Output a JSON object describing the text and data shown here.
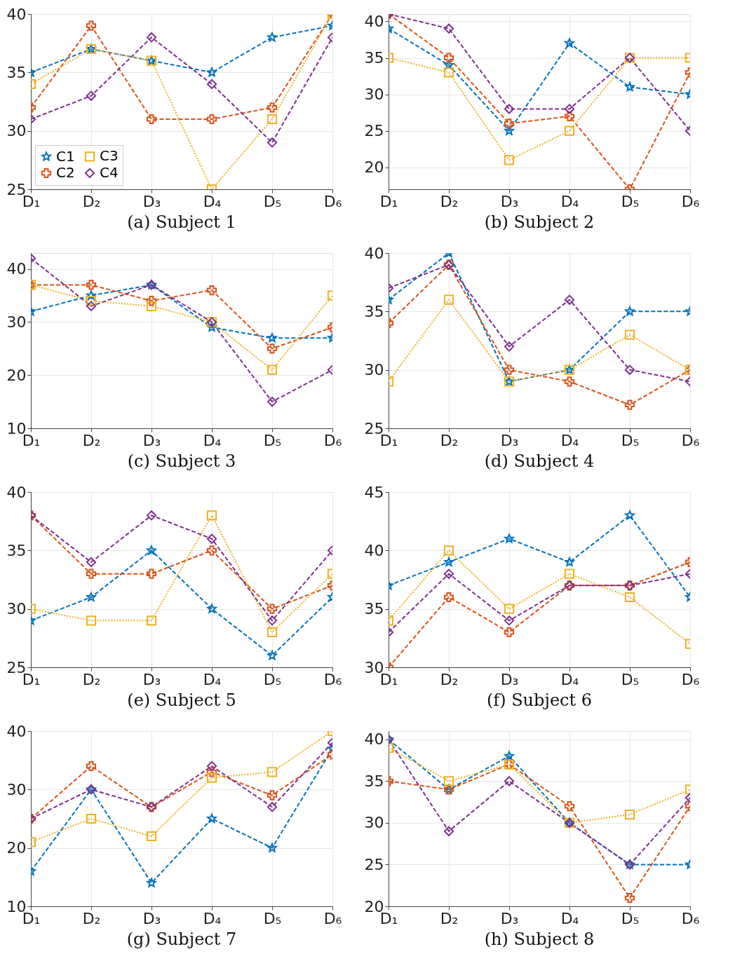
{
  "chart_data": [
    {
      "type": "line",
      "title": "(a) Subject 1",
      "categories": [
        "D₁",
        "D₂",
        "D₃",
        "D₄",
        "D₅",
        "D₆"
      ],
      "ylim": [
        25,
        40
      ],
      "yticks": [
        25,
        30,
        35,
        40
      ],
      "grid": true,
      "legend": "bottom left",
      "series": [
        {
          "name": "C1",
          "color": "#0072bd",
          "marker": "star",
          "line_style": "dashed",
          "values": [
            35,
            37,
            36,
            35,
            38,
            39
          ]
        },
        {
          "name": "C2",
          "color": "#d95319",
          "marker": "cross",
          "line_style": "dashed",
          "values": [
            32,
            39,
            31,
            31,
            32,
            40
          ]
        },
        {
          "name": "C3",
          "color": "#edb120",
          "marker": "square",
          "line_style": "dotted",
          "values": [
            34,
            37,
            36,
            25,
            31,
            40
          ]
        },
        {
          "name": "C4",
          "color": "#7e2f8e",
          "marker": "diamond",
          "line_style": "dashed",
          "values": [
            31,
            33,
            38,
            34,
            29,
            38
          ]
        }
      ]
    },
    {
      "type": "line",
      "title": "(b) Subject 2",
      "categories": [
        "D₁",
        "D₂",
        "D₃",
        "D₄",
        "D₅",
        "D₆"
      ],
      "ylim": [
        17,
        41
      ],
      "yticks": [
        20,
        25,
        30,
        35,
        40
      ],
      "grid": true,
      "series": [
        {
          "color": "#0072bd",
          "marker": "star",
          "line_style": "dashed",
          "values": [
            39,
            34,
            25,
            37,
            31,
            30
          ]
        },
        {
          "color": "#d95319",
          "marker": "cross",
          "line_style": "dashed",
          "values": [
            41,
            35,
            26,
            27,
            17,
            33
          ]
        },
        {
          "color": "#edb120",
          "marker": "square",
          "line_style": "dotted",
          "values": [
            35,
            33,
            21,
            25,
            35,
            35
          ]
        },
        {
          "color": "#7e2f8e",
          "marker": "diamond",
          "line_style": "dashed",
          "values": [
            41,
            39,
            28,
            28,
            35,
            25
          ]
        }
      ]
    },
    {
      "type": "line",
      "title": "(c) Subject 3",
      "categories": [
        "D₁",
        "D₂",
        "D₃",
        "D₄",
        "D₅",
        "D₆"
      ],
      "ylim": [
        10,
        43
      ],
      "yticks": [
        10,
        20,
        30,
        40
      ],
      "grid": true,
      "series": [
        {
          "color": "#0072bd",
          "marker": "star",
          "line_style": "dashed",
          "values": [
            32,
            35,
            37,
            29,
            27,
            27
          ]
        },
        {
          "color": "#d95319",
          "marker": "cross",
          "line_style": "dashed",
          "values": [
            37,
            37,
            34,
            36,
            25,
            29
          ]
        },
        {
          "color": "#edb120",
          "marker": "square",
          "line_style": "dotted",
          "values": [
            37,
            34,
            33,
            30,
            21,
            35
          ]
        },
        {
          "color": "#7e2f8e",
          "marker": "diamond",
          "line_style": "dashed",
          "values": [
            42,
            33,
            37,
            30,
            15,
            21
          ]
        }
      ]
    },
    {
      "type": "line",
      "title": "(d) Subject 4",
      "categories": [
        "D₁",
        "D₂",
        "D₃",
        "D₄",
        "D₅",
        "D₆"
      ],
      "ylim": [
        25,
        40
      ],
      "yticks": [
        25,
        30,
        35,
        40
      ],
      "grid": true,
      "series": [
        {
          "color": "#0072bd",
          "marker": "star",
          "line_style": "dashed",
          "values": [
            36,
            40,
            29,
            30,
            35,
            35
          ]
        },
        {
          "color": "#d95319",
          "marker": "cross",
          "line_style": "dashed",
          "values": [
            34,
            39,
            30,
            29,
            27,
            30
          ]
        },
        {
          "color": "#edb120",
          "marker": "square",
          "line_style": "dotted",
          "values": [
            29,
            36,
            29,
            30,
            33,
            30
          ]
        },
        {
          "color": "#7e2f8e",
          "marker": "diamond",
          "line_style": "dashed",
          "values": [
            37,
            39,
            32,
            36,
            30,
            29
          ]
        }
      ]
    },
    {
      "type": "line",
      "title": "(e) Subject 5",
      "categories": [
        "D₁",
        "D₂",
        "D₃",
        "D₄",
        "D₅",
        "D₆"
      ],
      "ylim": [
        25,
        40
      ],
      "yticks": [
        25,
        30,
        35,
        40
      ],
      "grid": true,
      "series": [
        {
          "color": "#0072bd",
          "marker": "star",
          "line_style": "dashed",
          "values": [
            29,
            31,
            35,
            30,
            26,
            31
          ]
        },
        {
          "color": "#d95319",
          "marker": "cross",
          "line_style": "dashed",
          "values": [
            38,
            33,
            33,
            35,
            30,
            32
          ]
        },
        {
          "color": "#edb120",
          "marker": "square",
          "line_style": "dotted",
          "values": [
            30,
            29,
            29,
            38,
            28,
            33
          ]
        },
        {
          "color": "#7e2f8e",
          "marker": "diamond",
          "line_style": "dashed",
          "values": [
            38,
            34,
            38,
            36,
            29,
            35
          ]
        }
      ]
    },
    {
      "type": "line",
      "title": "(f) Subject 6",
      "categories": [
        "D₁",
        "D₂",
        "D₃",
        "D₄",
        "D₅",
        "D₆"
      ],
      "ylim": [
        30,
        45
      ],
      "yticks": [
        30,
        35,
        40,
        45
      ],
      "grid": true,
      "series": [
        {
          "color": "#0072bd",
          "marker": "star",
          "line_style": "dashed",
          "values": [
            37,
            39,
            41,
            39,
            43,
            36
          ]
        },
        {
          "color": "#d95319",
          "marker": "cross",
          "line_style": "dashed",
          "values": [
            30,
            36,
            33,
            37,
            37,
            39
          ]
        },
        {
          "color": "#edb120",
          "marker": "square",
          "line_style": "dotted",
          "values": [
            34,
            40,
            35,
            38,
            36,
            32
          ]
        },
        {
          "color": "#7e2f8e",
          "marker": "diamond",
          "line_style": "dashed",
          "values": [
            33,
            38,
            34,
            37,
            37,
            38
          ]
        }
      ]
    },
    {
      "type": "line",
      "title": "(g) Subject 7",
      "categories": [
        "D₁",
        "D₂",
        "D₃",
        "D₄",
        "D₅",
        "D₆"
      ],
      "ylim": [
        10,
        40
      ],
      "yticks": [
        10,
        20,
        30,
        40
      ],
      "grid": true,
      "series": [
        {
          "color": "#0072bd",
          "marker": "star",
          "line_style": "dashed",
          "values": [
            16,
            30,
            14,
            25,
            20,
            37
          ]
        },
        {
          "color": "#d95319",
          "marker": "cross",
          "line_style": "dashed",
          "values": [
            25,
            34,
            27,
            33,
            29,
            36
          ]
        },
        {
          "color": "#edb120",
          "marker": "square",
          "line_style": "dotted",
          "values": [
            21,
            25,
            22,
            32,
            33,
            40
          ]
        },
        {
          "color": "#7e2f8e",
          "marker": "diamond",
          "line_style": "dashed",
          "values": [
            25,
            30,
            27,
            34,
            27,
            38
          ]
        }
      ]
    },
    {
      "type": "line",
      "title": "(h) Subject 8",
      "categories": [
        "D₁",
        "D₂",
        "D₃",
        "D₄",
        "D₅",
        "D₆"
      ],
      "ylim": [
        20,
        41
      ],
      "yticks": [
        20,
        25,
        30,
        35,
        40
      ],
      "grid": true,
      "series": [
        {
          "color": "#0072bd",
          "marker": "star",
          "line_style": "dashed",
          "values": [
            40,
            34,
            38,
            30,
            25,
            25
          ]
        },
        {
          "color": "#d95319",
          "marker": "cross",
          "line_style": "dashed",
          "values": [
            35,
            34,
            37,
            32,
            21,
            32
          ]
        },
        {
          "color": "#edb120",
          "marker": "square",
          "line_style": "dotted",
          "values": [
            39,
            35,
            37,
            30,
            31,
            34
          ]
        },
        {
          "color": "#7e2f8e",
          "marker": "diamond",
          "line_style": "dashed",
          "values": [
            40,
            29,
            35,
            30,
            25,
            33
          ]
        }
      ]
    }
  ]
}
